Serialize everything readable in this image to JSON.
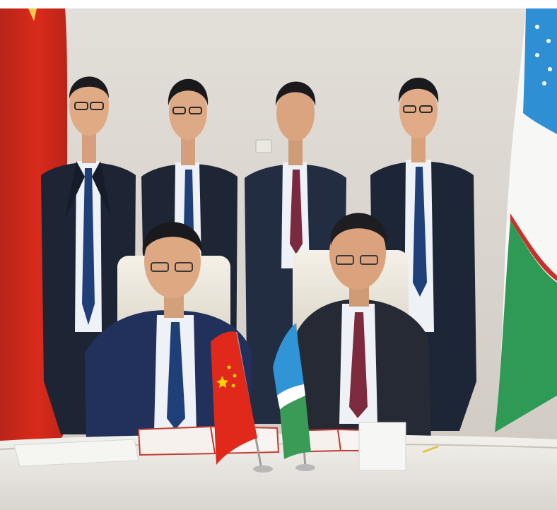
{
  "photo": {
    "scene": "signing-ceremony",
    "flags": [
      "china-flag",
      "uzbekistan-flag"
    ],
    "colors": {
      "wall": "#d8d3cc",
      "table": "#e9e6e0",
      "suit": "#1d2534",
      "shirt": "#edf0f4",
      "tie": "#1f3f78",
      "china_red": "#e0281b",
      "china_star": "#ffd400",
      "uz_blue": "#34a0d8",
      "uz_green": "#2e9a55",
      "uz_red": "#c8312a"
    }
  }
}
